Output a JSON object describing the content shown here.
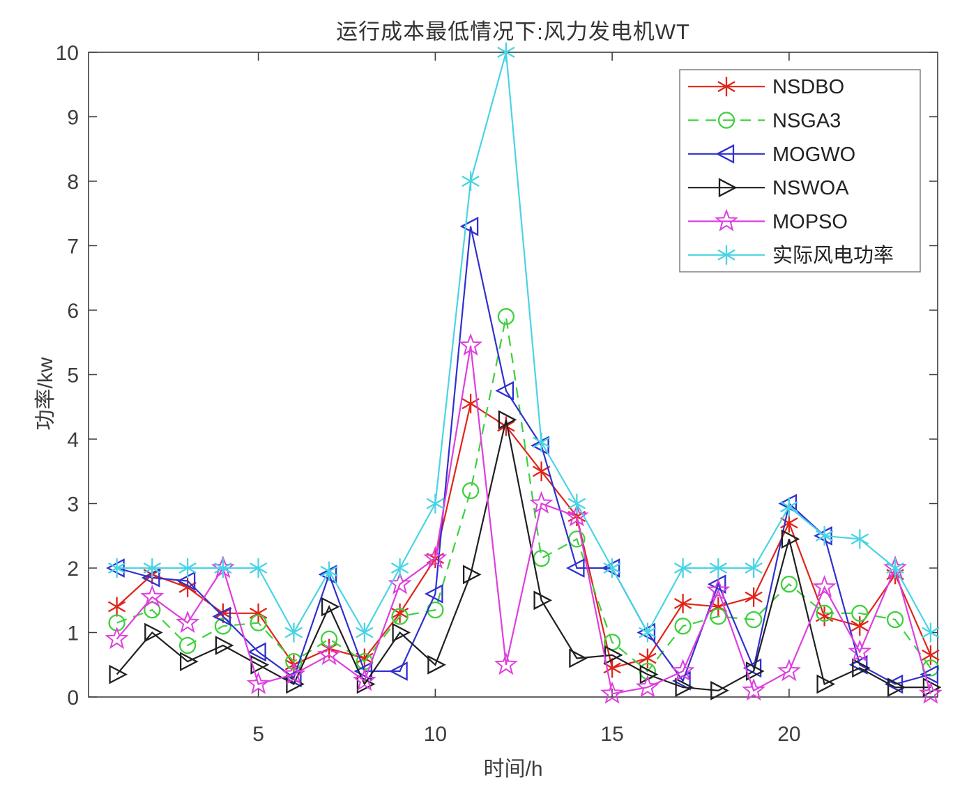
{
  "title": "运行成本最低情况下:风力发电机WT",
  "chart_data": {
    "type": "line",
    "title": "运行成本最低情况下:风力发电机WT",
    "xlabel": "时间/h",
    "ylabel": "功率/kw",
    "x": [
      1,
      2,
      3,
      4,
      5,
      6,
      7,
      8,
      9,
      10,
      11,
      12,
      13,
      14,
      15,
      16,
      17,
      18,
      19,
      20,
      21,
      22,
      23,
      24
    ],
    "xticks": [
      5,
      10,
      15,
      20
    ],
    "yticks": [
      0,
      1,
      2,
      3,
      4,
      5,
      6,
      7,
      8,
      9,
      10
    ],
    "xlim": [
      0.2,
      24.2
    ],
    "ylim": [
      0,
      10
    ],
    "grid": false,
    "legend_position": "top-right",
    "axis_color": "#3c3c3c",
    "series": [
      {
        "name": "NSDBO",
        "color": "#e02519",
        "marker": "asterisk",
        "line": "solid",
        "values": [
          1.4,
          1.9,
          1.7,
          1.3,
          1.3,
          0.5,
          0.75,
          0.6,
          1.3,
          2.15,
          4.55,
          4.2,
          3.5,
          2.8,
          0.45,
          0.6,
          1.45,
          1.4,
          1.55,
          2.7,
          1.25,
          1.1,
          1.9,
          0.65
        ]
      },
      {
        "name": "NSGA3",
        "color": "#3ed03e",
        "marker": "circle",
        "line": "dashed",
        "values": [
          1.15,
          1.35,
          0.8,
          1.1,
          1.15,
          0.55,
          0.9,
          0.55,
          1.25,
          1.35,
          3.2,
          5.9,
          2.15,
          2.45,
          0.85,
          0.4,
          1.1,
          1.25,
          1.2,
          1.75,
          1.3,
          1.3,
          1.2,
          0.45
        ]
      },
      {
        "name": "MOGWO",
        "color": "#3030cf",
        "marker": "triangle-left",
        "line": "solid",
        "values": [
          2.0,
          1.85,
          1.8,
          1.25,
          0.7,
          0.3,
          1.9,
          0.4,
          0.4,
          1.6,
          7.3,
          4.75,
          3.9,
          2.0,
          2.0,
          1.0,
          0.25,
          1.75,
          0.45,
          3.0,
          2.5,
          0.5,
          0.2,
          0.35
        ]
      },
      {
        "name": "NSWOA",
        "color": "#202020",
        "marker": "triangle-right",
        "line": "solid",
        "values": [
          0.35,
          1.0,
          0.55,
          0.8,
          0.5,
          0.2,
          1.4,
          0.2,
          1.0,
          0.5,
          1.9,
          4.3,
          1.5,
          0.6,
          0.65,
          0.35,
          0.15,
          0.1,
          0.4,
          2.45,
          0.2,
          0.45,
          0.15,
          0.15
        ]
      },
      {
        "name": "MOPSO",
        "color": "#de3fde",
        "marker": "pentagram",
        "line": "solid",
        "values": [
          0.9,
          1.55,
          1.15,
          2.0,
          0.2,
          0.35,
          0.65,
          0.25,
          1.75,
          2.15,
          5.45,
          0.5,
          3.0,
          2.8,
          0.05,
          0.15,
          0.4,
          1.65,
          0.1,
          0.4,
          1.7,
          0.7,
          2.0,
          0.05
        ]
      },
      {
        "name": "实际风电功率",
        "color": "#49d4e4",
        "marker": "asterisk",
        "line": "solid",
        "values": [
          2.0,
          2.0,
          2.0,
          2.0,
          2.0,
          1.0,
          1.95,
          1.0,
          2.0,
          3.0,
          8.0,
          10.0,
          3.95,
          3.0,
          2.0,
          1.0,
          2.0,
          2.0,
          2.0,
          2.95,
          2.5,
          2.45,
          2.0,
          1.0
        ]
      }
    ]
  }
}
